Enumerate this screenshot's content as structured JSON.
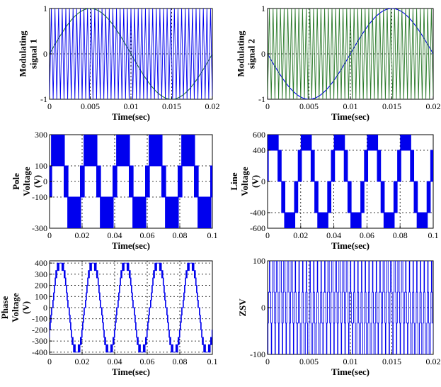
{
  "panels": [
    {
      "ylabel": [
        "Modulating",
        "signal 1"
      ],
      "xlabel": "Time(sec)"
    },
    {
      "ylabel": [
        "Modulating",
        "signal 2"
      ],
      "xlabel": "Time(sec)"
    },
    {
      "ylabel": [
        "Pole",
        "Voltage",
        "(V)"
      ],
      "xlabel": "Time(sec)"
    },
    {
      "ylabel": [
        "Line",
        "Voltage",
        "(V)"
      ],
      "xlabel": "Time(sec)"
    },
    {
      "ylabel": [
        "Phase",
        "Voltage",
        "(V)"
      ],
      "xlabel": "Time(sec)"
    },
    {
      "ylabel": [
        "ZSV"
      ],
      "xlabel": "Time(sec)"
    }
  ],
  "chart_data": [
    {
      "type": "line",
      "title": "",
      "xlabel": "Time(sec)",
      "ylabel": "Modulating signal 1",
      "xlim": [
        0,
        0.02
      ],
      "ylim": [
        -1,
        1
      ],
      "xticks": [
        "0",
        "0.005",
        "0.01",
        "0.015",
        "0.02"
      ],
      "xtick_values": [
        0,
        0.005,
        0.01,
        0.015,
        0.02
      ],
      "yticks": [
        "-1",
        "0",
        "1"
      ],
      "ytick_values": [
        -1,
        0,
        1
      ],
      "grid": "dotted",
      "series": [
        {
          "kind": "sine",
          "amplitude": 1,
          "frequency_hz": 50,
          "phase_deg": 0,
          "color": "#2a7a2a"
        },
        {
          "kind": "triangle",
          "amplitude": 1,
          "frequency_hz": 2250,
          "color": "#0000ee"
        }
      ]
    },
    {
      "type": "line",
      "title": "",
      "xlabel": "Time(sec)",
      "ylabel": "Modulating signal 2",
      "xlim": [
        0,
        0.02
      ],
      "ylim": [
        -1,
        1
      ],
      "xticks": [
        "0",
        "0.005",
        "0.01",
        "0.015",
        "0.02"
      ],
      "xtick_values": [
        0,
        0.005,
        0.01,
        0.015,
        0.02
      ],
      "yticks": [
        "-1",
        "0",
        "1"
      ],
      "ytick_values": [
        -1,
        0,
        1
      ],
      "grid": "dotted",
      "series": [
        {
          "kind": "sine",
          "amplitude": 1,
          "frequency_hz": 50,
          "phase_deg": 180,
          "color": "#0000ee"
        },
        {
          "kind": "triangle",
          "amplitude": 1,
          "frequency_hz": 2250,
          "color": "#2a7a2a"
        }
      ]
    },
    {
      "type": "line",
      "title": "",
      "xlabel": "Time(sec)",
      "ylabel": "Pole Voltage (V)",
      "xlim": [
        0,
        0.1
      ],
      "ylim": [
        -300,
        300
      ],
      "xticks": [
        "0",
        "0.02",
        "0.04",
        "0.06",
        "0.08",
        "0.1"
      ],
      "xtick_values": [
        0,
        0.02,
        0.04,
        0.06,
        0.08,
        0.1
      ],
      "yticks": [
        "-300",
        "-100",
        "0",
        "100",
        "300"
      ],
      "ytick_values": [
        -300,
        -100,
        0,
        100,
        300
      ],
      "grid": "dotted",
      "series": [
        {
          "kind": "pwm",
          "levels": [
            -300,
            -100,
            100,
            300
          ],
          "fundamental_hz": 50,
          "phase_deg": 0,
          "switching_hz": 2250,
          "color": "#0000ee"
        }
      ]
    },
    {
      "type": "line",
      "title": "",
      "xlabel": "Time(sec)",
      "ylabel": "Line Voltage (V)",
      "xlim": [
        0,
        0.1
      ],
      "ylim": [
        -600,
        600
      ],
      "xticks": [
        "0",
        "0.02",
        "0.04",
        "0.06",
        "0.08",
        "0.1"
      ],
      "xtick_values": [
        0,
        0.02,
        0.04,
        0.06,
        0.08,
        0.1
      ],
      "yticks": [
        "-600",
        "-400",
        "0",
        "400",
        "600"
      ],
      "ytick_values": [
        -600,
        -400,
        0,
        400,
        600
      ],
      "grid": "dotted",
      "series": [
        {
          "kind": "pwm",
          "levels": [
            -600,
            -400,
            0,
            400,
            600
          ],
          "fundamental_hz": 50,
          "phase_deg": 30,
          "switching_hz": 2250,
          "color": "#0000ee"
        }
      ]
    },
    {
      "type": "line",
      "title": "",
      "xlabel": "Time(sec)",
      "ylabel": "Phase Voltage (V)",
      "xlim": [
        0,
        0.1
      ],
      "ylim": [
        -420,
        420
      ],
      "xticks": [
        "0",
        "0.02",
        "0.04",
        "0.06",
        "0.08",
        "0.1"
      ],
      "xtick_values": [
        0,
        0.02,
        0.04,
        0.06,
        0.08,
        0.1
      ],
      "yticks": [
        "-400",
        "-300",
        "-200",
        "-100",
        "0",
        "100",
        "200",
        "300",
        "400"
      ],
      "ytick_values": [
        -400,
        -300,
        -200,
        -100,
        0,
        100,
        200,
        300,
        400
      ],
      "grid": "dotted",
      "series": [
        {
          "kind": "stepped",
          "levels": [
            -400,
            -333,
            -267,
            -200,
            -133,
            -67,
            0,
            67,
            133,
            200,
            267,
            333,
            400
          ],
          "fundamental_hz": 50,
          "phase_deg": -30,
          "switching_hz": 2250,
          "color": "#0000ee"
        }
      ]
    },
    {
      "type": "line",
      "title": "",
      "xlabel": "Time(sec)",
      "ylabel": "ZSV",
      "xlim": [
        0,
        0.02
      ],
      "ylim": [
        -100,
        100
      ],
      "xticks": [
        "0",
        "0.005",
        "0.01",
        "0.015",
        "0.02"
      ],
      "xtick_values": [
        0,
        0.005,
        0.01,
        0.015,
        0.02
      ],
      "yticks": [
        "-100",
        "0",
        "100"
      ],
      "ytick_values": [
        -100,
        0,
        100
      ],
      "grid": "dotted",
      "series": [
        {
          "kind": "levels_switching",
          "levels": [
            -100,
            -33,
            33,
            100
          ],
          "switching_hz": 2250,
          "color": "#0000ee"
        }
      ]
    }
  ]
}
